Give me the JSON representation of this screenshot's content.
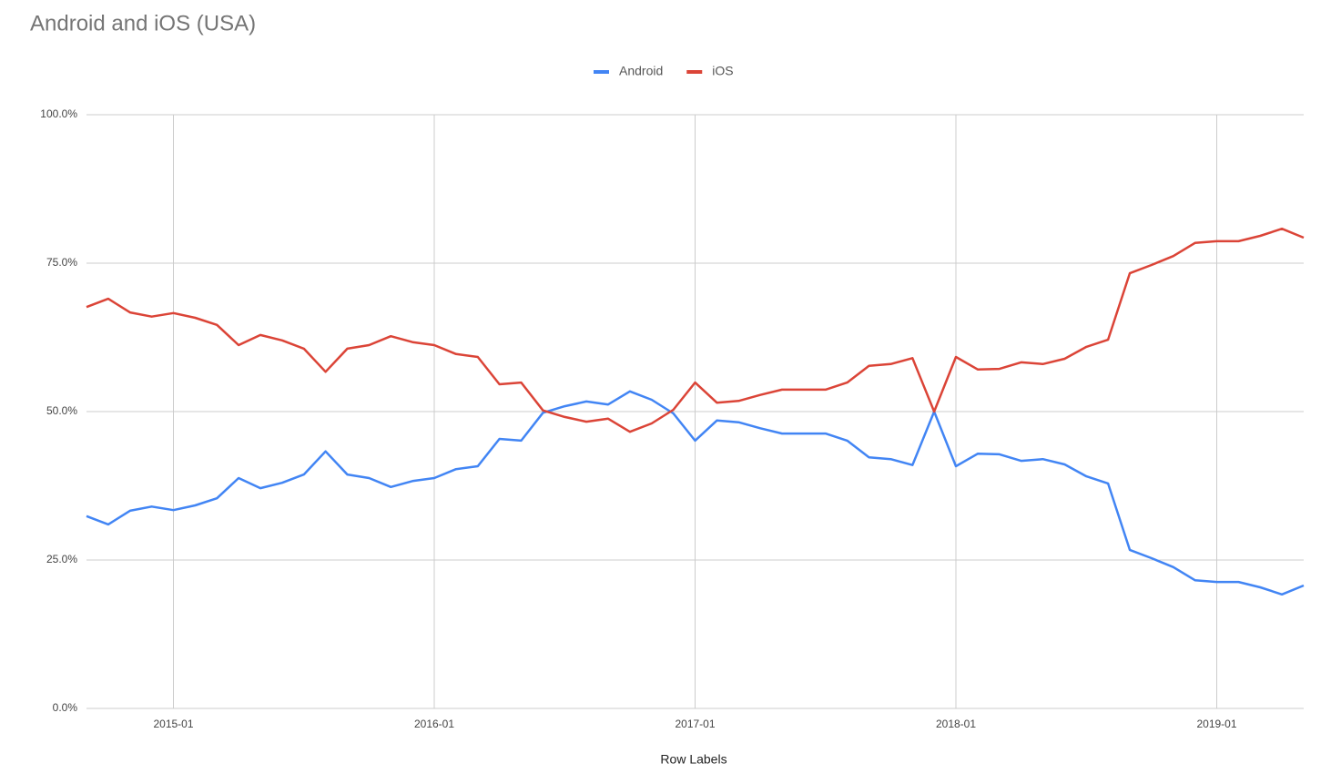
{
  "chart_data": {
    "type": "line",
    "title": "Android and iOS (USA)",
    "x_label": "Row Labels",
    "x": [
      "2014-09",
      "2014-10",
      "2014-11",
      "2014-12",
      "2015-01",
      "2015-02",
      "2015-03",
      "2015-04",
      "2015-05",
      "2015-06",
      "2015-07",
      "2015-08",
      "2015-09",
      "2015-10",
      "2015-11",
      "2015-12",
      "2016-01",
      "2016-02",
      "2016-03",
      "2016-04",
      "2016-05",
      "2016-06",
      "2016-07",
      "2016-08",
      "2016-09",
      "2016-10",
      "2016-11",
      "2016-12",
      "2017-01",
      "2017-02",
      "2017-03",
      "2017-04",
      "2017-05",
      "2017-06",
      "2017-07",
      "2017-08",
      "2017-09",
      "2017-10",
      "2017-11",
      "2017-12",
      "2018-01",
      "2018-02",
      "2018-03",
      "2018-04",
      "2018-05",
      "2018-06",
      "2018-07",
      "2018-08",
      "2018-09",
      "2018-10",
      "2018-11",
      "2018-12",
      "2019-01",
      "2019-02",
      "2019-03",
      "2019-04",
      "2019-05"
    ],
    "xticks": [
      "2015-01",
      "2016-01",
      "2017-01",
      "2018-01",
      "2019-01"
    ],
    "series": [
      {
        "name": "Android",
        "color": "#4285f4",
        "values": [
          32.4,
          31.0,
          33.3,
          34.0,
          33.4,
          34.2,
          35.4,
          38.8,
          37.1,
          38.0,
          39.4,
          43.3,
          39.4,
          38.8,
          37.3,
          38.3,
          38.8,
          40.3,
          40.8,
          45.4,
          45.1,
          49.8,
          50.9,
          51.7,
          51.2,
          53.4,
          52.0,
          49.7,
          45.1,
          48.5,
          48.2,
          47.2,
          46.3,
          46.3,
          46.3,
          45.1,
          42.3,
          42.0,
          41.0,
          50.0,
          40.8,
          42.9,
          42.8,
          41.7,
          42.0,
          41.1,
          39.1,
          37.9,
          26.7,
          25.3,
          23.8,
          21.6,
          21.3,
          21.3,
          20.4,
          19.2,
          20.7
        ]
      },
      {
        "name": "iOS",
        "color": "#db4437",
        "values": [
          67.6,
          69.0,
          66.7,
          66.0,
          66.6,
          65.8,
          64.6,
          61.2,
          62.9,
          62.0,
          60.6,
          56.7,
          60.6,
          61.2,
          62.7,
          61.7,
          61.2,
          59.7,
          59.2,
          54.6,
          54.9,
          50.2,
          49.1,
          48.3,
          48.8,
          46.6,
          48.0,
          50.3,
          54.9,
          51.5,
          51.8,
          52.8,
          53.7,
          53.7,
          53.7,
          54.9,
          57.7,
          58.0,
          59.0,
          50.0,
          59.2,
          57.1,
          57.2,
          58.3,
          58.0,
          58.9,
          60.9,
          62.1,
          73.3,
          74.7,
          76.2,
          78.4,
          78.7,
          78.7,
          79.6,
          80.8,
          79.3
        ]
      }
    ],
    "ylim": [
      0,
      100
    ],
    "yticks": [
      {
        "value": 0,
        "label": "0.0%"
      },
      {
        "value": 25,
        "label": "25.0%"
      },
      {
        "value": 50,
        "label": "50.0%"
      },
      {
        "value": 75,
        "label": "75.0%"
      },
      {
        "value": 100,
        "label": "100.0%"
      }
    ],
    "grid": true,
    "legend": "top"
  }
}
